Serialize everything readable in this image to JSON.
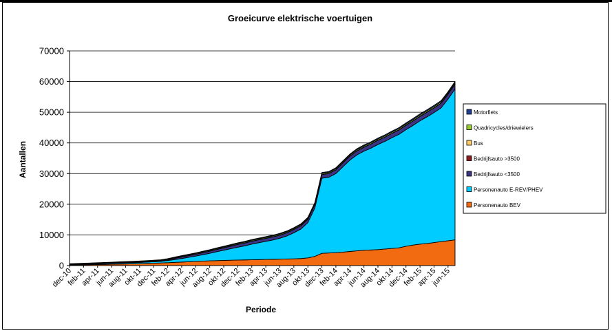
{
  "colors": {
    "bev": "#f26b10",
    "phev": "#00ccff",
    "bedrijf_lt": "#3b3483",
    "bedrijf_gt": "#8b1a1a",
    "bus": "#ffcc66",
    "quadricycles": "#99cc33",
    "motorfiets": "#1f3d8f"
  },
  "chart_data": {
    "type": "area",
    "stacked": true,
    "title": "Groeicurve elektrische voertuigen",
    "xlabel": "Periode",
    "ylabel": "Aantallen",
    "ylim": [
      0,
      70000
    ],
    "yticks": [
      "0",
      "10000",
      "20000",
      "30000",
      "40000",
      "50000",
      "60000",
      "70000"
    ],
    "grid": true,
    "legend_position": "right",
    "x": [
      "dec-10",
      "jan-11",
      "feb-11",
      "mrt-11",
      "apr-11",
      "mei-11",
      "jun-11",
      "jul-11",
      "aug-11",
      "sep-11",
      "okt-11",
      "nov-11",
      "dec-11",
      "jan-12",
      "feb-12",
      "mrt-12",
      "apr-12",
      "mei-12",
      "jun-12",
      "jul-12",
      "aug-12",
      "sep-12",
      "okt-12",
      "nov-12",
      "dec-12",
      "jan-13",
      "feb-13",
      "mrt-13",
      "apr-13",
      "mei-13",
      "jun-13",
      "jul-13",
      "aug-13",
      "sep-13",
      "okt-13",
      "nov-13",
      "dec-13",
      "jan-14",
      "feb-14",
      "mrt-14",
      "apr-14",
      "mei-14",
      "jun-14",
      "jul-14",
      "aug-14",
      "sep-14",
      "okt-14",
      "nov-14",
      "dec-14",
      "jan-15",
      "feb-15",
      "mrt-15",
      "apr-15",
      "mei-15",
      "jun-15",
      "jul-15"
    ],
    "xtick_labels": [
      "dec-10",
      "feb-11",
      "apr-11",
      "jun-11",
      "aug-11",
      "okt-11",
      "dec-11",
      "feb-12",
      "apr-12",
      "jun-12",
      "aug-12",
      "okt-12",
      "dec-12",
      "feb-13",
      "apr-13",
      "jun-13",
      "aug-13",
      "okt-13",
      "dec-13",
      "feb-14",
      "apr-14",
      "jun-14",
      "aug-14",
      "okt-14",
      "dec-14",
      "feb-15",
      "apr-15",
      "jun-15"
    ],
    "series": [
      {
        "name": "Personenauto BEV",
        "color_key": "bev",
        "values": [
          200,
          230,
          260,
          300,
          340,
          380,
          430,
          480,
          530,
          580,
          640,
          700,
          780,
          850,
          950,
          1050,
          1150,
          1250,
          1350,
          1450,
          1550,
          1620,
          1700,
          1750,
          1800,
          1850,
          1900,
          1950,
          2000,
          2050,
          2100,
          2150,
          2200,
          2300,
          2500,
          3000,
          4000,
          4100,
          4200,
          4400,
          4600,
          4800,
          5000,
          5100,
          5200,
          5400,
          5600,
          5800,
          6300,
          6700,
          7000,
          7200,
          7500,
          7800,
          8100,
          8400
        ]
      },
      {
        "name": "Personenauto E-REV/PHEV",
        "color_key": "phev",
        "values": [
          100,
          130,
          160,
          190,
          220,
          250,
          280,
          310,
          340,
          370,
          400,
          430,
          470,
          520,
          700,
          900,
          1150,
          1450,
          1750,
          2100,
          2450,
          2900,
          3300,
          3750,
          4200,
          4600,
          5100,
          5500,
          5900,
          6300,
          6800,
          7500,
          8500,
          9600,
          11500,
          15800,
          24500,
          24700,
          25800,
          27800,
          29800,
          31300,
          32300,
          33200,
          34300,
          35100,
          36100,
          37000,
          38000,
          39000,
          40200,
          41300,
          42400,
          43600,
          46200,
          49200
        ]
      },
      {
        "name": "Bedrijfsauto <3500",
        "color_key": "bedrijf_lt",
        "values": [
          50,
          55,
          60,
          65,
          70,
          75,
          80,
          85,
          90,
          95,
          100,
          110,
          120,
          130,
          200,
          400,
          500,
          550,
          600,
          650,
          700,
          750,
          800,
          850,
          900,
          920,
          940,
          960,
          980,
          1000,
          1020,
          1040,
          1060,
          1080,
          1100,
          1150,
          1200,
          1220,
          1240,
          1260,
          1280,
          1300,
          1320,
          1340,
          1360,
          1380,
          1400,
          1420,
          1440,
          1460,
          1480,
          1500,
          1520,
          1540,
          1560,
          1580
        ]
      },
      {
        "name": "Bedrijfsauto >3500",
        "color_key": "bedrijf_gt",
        "values": [
          5,
          5,
          5,
          5,
          6,
          6,
          6,
          6,
          7,
          7,
          7,
          8,
          8,
          8,
          9,
          9,
          10,
          10,
          10,
          11,
          11,
          12,
          12,
          13,
          13,
          14,
          14,
          15,
          15,
          16,
          16,
          17,
          17,
          18,
          18,
          19,
          19,
          20,
          20,
          21,
          21,
          22,
          22,
          23,
          23,
          24,
          24,
          25,
          25,
          26,
          26,
          27,
          27,
          28,
          28,
          29
        ]
      },
      {
        "name": "Bus",
        "color_key": "bus",
        "values": [
          5,
          5,
          5,
          5,
          5,
          6,
          6,
          6,
          6,
          6,
          7,
          7,
          7,
          7,
          8,
          8,
          8,
          9,
          9,
          9,
          10,
          10,
          10,
          11,
          11,
          11,
          12,
          12,
          12,
          13,
          13,
          13,
          14,
          14,
          14,
          15,
          15,
          15,
          16,
          16,
          16,
          17,
          17,
          17,
          18,
          18,
          18,
          19,
          19,
          19,
          20,
          20,
          20,
          21,
          21,
          21
        ]
      },
      {
        "name": "Quadricycles/driewielers",
        "color_key": "quadricycles",
        "values": [
          150,
          155,
          160,
          165,
          170,
          175,
          180,
          185,
          190,
          195,
          200,
          205,
          210,
          215,
          220,
          225,
          230,
          235,
          240,
          245,
          250,
          255,
          260,
          265,
          270,
          275,
          280,
          285,
          290,
          295,
          300,
          305,
          310,
          315,
          320,
          325,
          330,
          335,
          340,
          345,
          350,
          355,
          360,
          365,
          370,
          375,
          380,
          385,
          390,
          395,
          400,
          405,
          410,
          415,
          420,
          425
        ]
      },
      {
        "name": "Motorfiets",
        "color_key": "motorfiets",
        "values": [
          100,
          105,
          110,
          115,
          120,
          125,
          130,
          135,
          140,
          145,
          150,
          155,
          160,
          165,
          170,
          175,
          180,
          185,
          190,
          195,
          200,
          205,
          210,
          215,
          220,
          225,
          230,
          235,
          240,
          245,
          250,
          255,
          260,
          265,
          270,
          275,
          280,
          285,
          290,
          295,
          300,
          305,
          310,
          315,
          320,
          325,
          330,
          335,
          340,
          345,
          350,
          355,
          360,
          365,
          370,
          375
        ]
      }
    ],
    "legend_order": [
      "Motorfiets",
      "Quadricycles/driewielers",
      "Bus",
      "Bedrijfsauto >3500",
      "Bedrijfsauto <3500",
      "Personenauto E-REV/PHEV",
      "Personenauto BEV"
    ]
  }
}
